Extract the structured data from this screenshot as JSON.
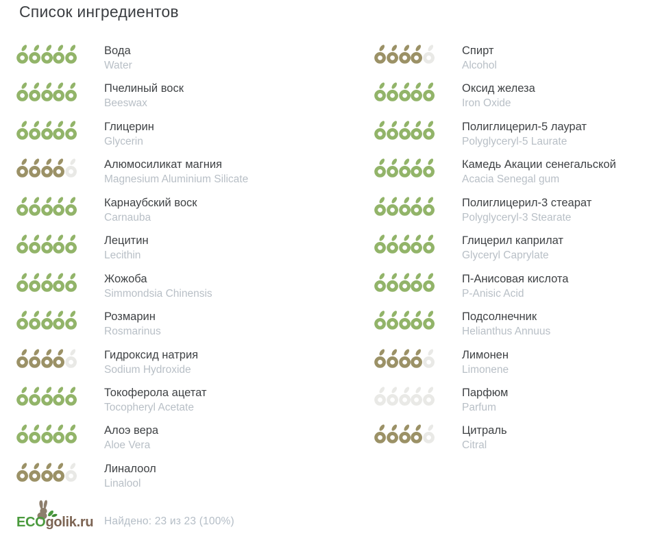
{
  "page": {
    "title": "Список ингредиентов"
  },
  "rating": {
    "max": 5,
    "colors": {
      "good": "#92b469",
      "medium": "#9b9166",
      "empty": "#e9e9e6"
    }
  },
  "columns": {
    "left": [
      {
        "ru": "Вода",
        "en": "Water",
        "score": 5,
        "level": "good"
      },
      {
        "ru": "Пчелиный воск",
        "en": "Beeswax",
        "score": 5,
        "level": "good"
      },
      {
        "ru": "Глицерин",
        "en": "Glycerin",
        "score": 5,
        "level": "good"
      },
      {
        "ru": "Алюмосиликат магния",
        "en": "Magnesium Aluminium Silicate",
        "score": 4,
        "level": "medium"
      },
      {
        "ru": "Карнаубский воск",
        "en": "Carnauba",
        "score": 5,
        "level": "good"
      },
      {
        "ru": "Лецитин",
        "en": "Lecithin",
        "score": 5,
        "level": "good"
      },
      {
        "ru": "Жожоба",
        "en": "Simmondsia Chinensis",
        "score": 5,
        "level": "good"
      },
      {
        "ru": "Розмарин",
        "en": "Rosmarinus",
        "score": 5,
        "level": "good"
      },
      {
        "ru": "Гидроксид натрия",
        "en": "Sodium Hydroxide",
        "score": 4,
        "level": "medium"
      },
      {
        "ru": "Токоферола ацетат",
        "en": "Tocopheryl Acetate",
        "score": 5,
        "level": "good"
      },
      {
        "ru": "Алоэ вера",
        "en": "Aloe Vera",
        "score": 5,
        "level": "good"
      },
      {
        "ru": "Линалоол",
        "en": "Linalool",
        "score": 4,
        "level": "medium"
      }
    ],
    "right": [
      {
        "ru": "Спирт",
        "en": "Alcohol",
        "score": 4,
        "level": "medium"
      },
      {
        "ru": "Оксид железа",
        "en": "Iron Oxide",
        "score": 5,
        "level": "good"
      },
      {
        "ru": "Полиглицерил-5 лаурат",
        "en": "Polyglyceryl-5 Laurate",
        "score": 5,
        "level": "good"
      },
      {
        "ru": "Камедь Акации сенегальской",
        "en": "Acacia Senegal gum",
        "score": 5,
        "level": "good"
      },
      {
        "ru": "Полиглицерил-3 стеарат",
        "en": "Polyglyceryl-3 Stearate",
        "score": 5,
        "level": "good"
      },
      {
        "ru": "Глицерил каприлат",
        "en": "Glyceryl Caprylate",
        "score": 5,
        "level": "good"
      },
      {
        "ru": "П-Анисовая кислота",
        "en": "P-Anisic Acid",
        "score": 5,
        "level": "good"
      },
      {
        "ru": "Подсолнечник",
        "en": "Helianthus Annuus",
        "score": 5,
        "level": "good"
      },
      {
        "ru": "Лимонен",
        "en": "Limonene",
        "score": 4,
        "level": "medium"
      },
      {
        "ru": "Парфюм",
        "en": "Parfum",
        "score": 0,
        "level": "empty"
      },
      {
        "ru": "Цитраль",
        "en": "Citral",
        "score": 4,
        "level": "medium"
      }
    ]
  },
  "footer": {
    "logo_eco": "ECO",
    "logo_rest": "golik.ru",
    "logo_colors": {
      "eco": "#4a9a3d",
      "rest": "#7c6453",
      "rabbit": "#8d7e6c"
    },
    "found_text": "Найдено: 23 из 23 (100%)"
  }
}
